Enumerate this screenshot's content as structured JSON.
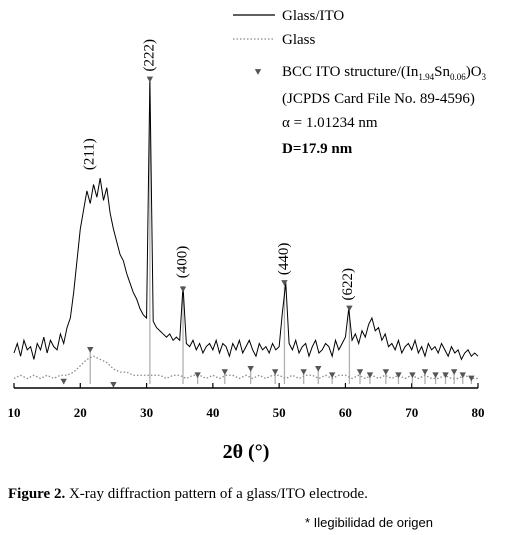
{
  "chart_data": {
    "type": "line",
    "xlabel": "2θ (°)",
    "xlim": [
      10,
      80
    ],
    "xticks": [
      10,
      20,
      30,
      40,
      50,
      60,
      70,
      80
    ],
    "ylim": [
      0,
      100
    ],
    "series": [
      {
        "name": "Glass/ITO",
        "color": "#000000",
        "style": "solid",
        "x": [
          10,
          10.5,
          11,
          11.5,
          12,
          12.5,
          13,
          13.5,
          14,
          14.5,
          15,
          15.5,
          16,
          16.5,
          17,
          17.5,
          18,
          18.5,
          19,
          19.5,
          20,
          20.5,
          21,
          21.5,
          22,
          22.5,
          23,
          23.5,
          24,
          24.5,
          25,
          25.5,
          26,
          26.5,
          27,
          27.5,
          28,
          28.5,
          29,
          29.5,
          30,
          30.5,
          31,
          31.5,
          32,
          32.5,
          33,
          33.5,
          34,
          34.5,
          35,
          35.5,
          36,
          36.5,
          37,
          37.5,
          38,
          38.5,
          39,
          39.5,
          40,
          40.5,
          41,
          41.5,
          42,
          42.5,
          43,
          43.5,
          44,
          44.5,
          45,
          45.5,
          46,
          46.5,
          47,
          47.5,
          48,
          48.5,
          49,
          49.5,
          50,
          50.5,
          51,
          51.5,
          52,
          52.5,
          53,
          53.5,
          54,
          54.5,
          55,
          55.5,
          56,
          56.5,
          57,
          57.5,
          58,
          58.5,
          59,
          59.5,
          60,
          60.5,
          61,
          61.5,
          62,
          62.5,
          63,
          63.5,
          64,
          64.5,
          65,
          65.5,
          66,
          66.5,
          67,
          67.5,
          68,
          68.5,
          69,
          69.5,
          70,
          70.5,
          71,
          71.5,
          72,
          72.5,
          73,
          73.5,
          74,
          74.5,
          75,
          75.5,
          76,
          76.5,
          77,
          77.5,
          78,
          78.5,
          79,
          79.5,
          80
        ],
        "values": [
          11,
          14,
          10,
          15,
          12,
          13,
          9,
          14,
          12,
          16,
          11,
          15,
          13,
          12,
          17,
          14,
          19,
          22,
          30,
          40,
          50,
          56,
          62,
          58,
          64,
          60,
          66,
          59,
          63,
          55,
          50,
          46,
          42,
          40,
          36,
          33,
          30,
          28,
          25,
          23,
          22,
          97,
          21,
          19,
          18,
          17,
          16,
          17,
          15,
          16,
          15,
          32,
          14,
          13,
          15,
          12,
          14,
          11,
          13,
          14,
          12,
          15,
          11,
          14,
          13,
          10,
          14,
          12,
          15,
          11,
          13,
          15,
          12,
          10,
          14,
          12,
          13,
          11,
          14,
          12,
          13,
          24,
          33,
          14,
          12,
          15,
          11,
          13,
          14,
          10,
          13,
          15,
          11,
          12,
          14,
          13,
          10,
          15,
          12,
          14,
          16,
          25,
          15,
          17,
          14,
          18,
          16,
          20,
          22,
          18,
          19,
          15,
          17,
          13,
          14,
          12,
          15,
          11,
          13,
          14,
          12,
          15,
          11,
          13,
          10,
          14,
          12,
          13,
          11,
          14,
          12,
          10,
          13,
          11,
          12,
          9,
          11,
          12,
          10,
          11,
          10
        ]
      },
      {
        "name": "Glass",
        "color": "#8a8a8a",
        "style": "dotted",
        "x": [
          10,
          11,
          12,
          13,
          14,
          15,
          16,
          17,
          18,
          19,
          20,
          21,
          22,
          23,
          24,
          25,
          26,
          27,
          28,
          29,
          30,
          31,
          32,
          33,
          34,
          35,
          36,
          37,
          38,
          39,
          40,
          41,
          42,
          43,
          44,
          45,
          46,
          47,
          48,
          49,
          50,
          51,
          52,
          53,
          54,
          55,
          56,
          57,
          58,
          59,
          60,
          61,
          62,
          63,
          64,
          65,
          66,
          67,
          68,
          69,
          70,
          71,
          72,
          73,
          74,
          75,
          76,
          77,
          78,
          79,
          80
        ],
        "values": [
          3,
          4,
          3,
          4,
          3,
          4,
          3,
          4,
          4,
          5,
          7,
          9,
          10,
          9,
          8,
          6,
          5,
          5,
          4,
          4,
          4,
          4,
          4,
          3,
          4,
          4,
          3,
          4,
          4,
          3,
          4,
          3,
          4,
          4,
          3,
          4,
          3,
          4,
          3,
          4,
          4,
          3,
          4,
          3,
          4,
          4,
          3,
          4,
          3,
          4,
          4,
          3,
          4,
          3,
          4,
          3,
          4,
          3,
          4,
          3,
          4,
          3,
          4,
          3,
          3,
          4,
          3,
          3,
          4,
          3,
          3
        ]
      },
      {
        "name": "BCC ITO structure/(In1.94Sn0.06)O3",
        "color": "#555555",
        "marker": "triangle-down",
        "stem_color": "#b0b0b0",
        "x": [
          17.5,
          21.5,
          25.0,
          30.5,
          35.5,
          37.7,
          41.8,
          45.7,
          49.4,
          50.8,
          53.7,
          55.9,
          58.0,
          60.6,
          62.2,
          63.7,
          66.1,
          68.0,
          70.1,
          72.0,
          73.6,
          75.1,
          76.4,
          77.7,
          79.0
        ],
        "values": [
          2,
          12,
          1,
          97,
          31,
          4,
          5,
          6,
          5,
          33,
          5,
          6,
          4,
          25,
          5,
          4,
          5,
          4,
          4,
          5,
          4,
          4,
          5,
          4,
          3
        ]
      }
    ],
    "legend_notes": [
      "(JCPDS Card File No. 89-4596)",
      "α = 1.01234 nm",
      "D=17.9 nm"
    ],
    "annotations": [
      {
        "text": "(211)",
        "x": 21.5
      },
      {
        "text": "(222)",
        "x": 30.5
      },
      {
        "text": "(400)",
        "x": 35.5
      },
      {
        "text": "(440)",
        "x": 50.8
      },
      {
        "text": "(622)",
        "x": 60.5
      }
    ]
  },
  "caption": {
    "label": "Figure 2.",
    "text": " X-ray diffraction pattern of a glass/ITO electrode."
  },
  "footnote": "* Ilegibilidad de origen"
}
